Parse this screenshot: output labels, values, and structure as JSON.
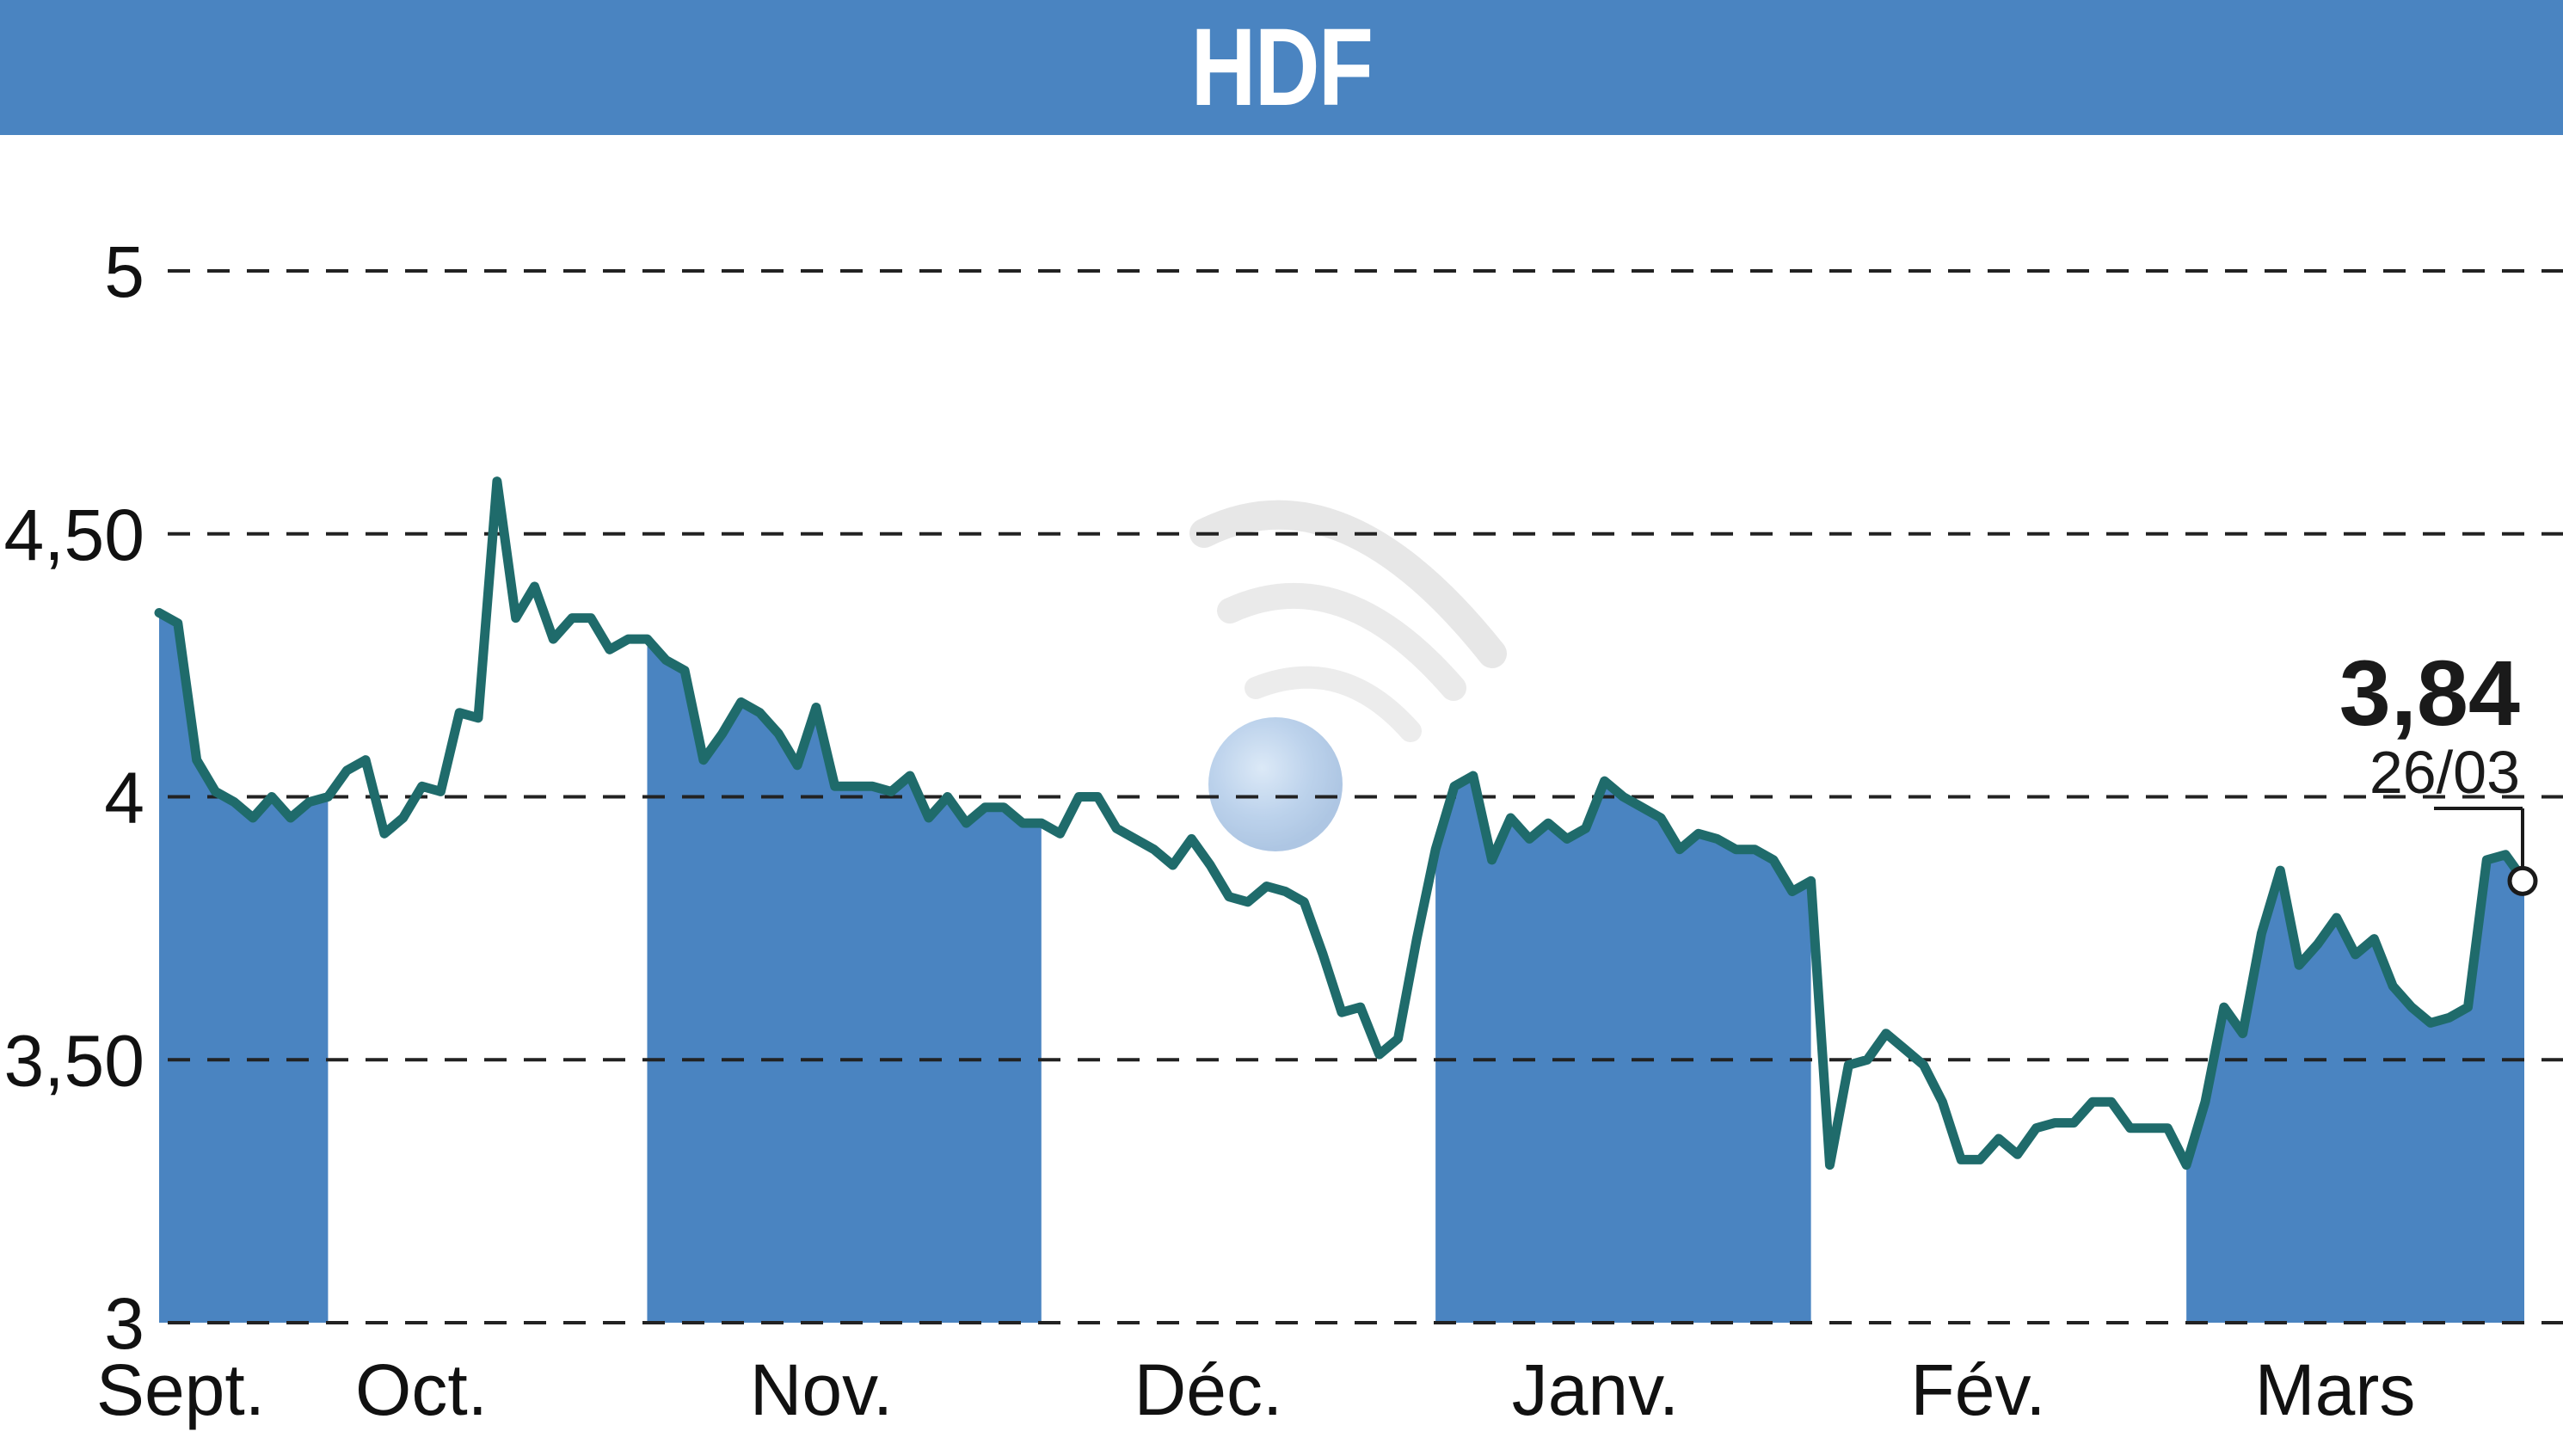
{
  "header": {
    "title": "HDF"
  },
  "colors": {
    "banner": "#4a84c1",
    "fill": "#4a84c1",
    "line": "#1f6b6b",
    "grid": "#222222"
  },
  "watermark": {
    "icon": "wifi-signal-icon"
  },
  "chart_data": {
    "type": "line",
    "title": "HDF",
    "ylim": [
      3,
      5
    ],
    "y_ticks": [
      {
        "value": 3,
        "label": "3"
      },
      {
        "value": 3.5,
        "label": "3,50"
      },
      {
        "value": 4,
        "label": "4"
      },
      {
        "value": 4.5,
        "label": "4,50"
      },
      {
        "value": 5,
        "label": "5"
      }
    ],
    "months": [
      "Sept.",
      "Oct.",
      "Nov.",
      "Déc.",
      "Janv.",
      "Fév.",
      "Mars"
    ],
    "shaded_months": [
      "Sept.",
      "Nov.",
      "Janv.",
      "Mars"
    ],
    "grid": "horizontal-dashed",
    "last_value": {
      "label": "3,84",
      "date": "26/03",
      "value": 3.84
    },
    "series": [
      {
        "values": [
          4.35,
          4.33,
          4.07,
          4.01,
          3.99,
          3.96,
          4.0,
          3.96,
          3.99,
          4.0,
          4.05,
          4.07,
          3.93,
          3.96,
          4.02,
          4.01,
          4.16,
          4.15,
          4.6,
          4.34,
          4.4,
          4.3,
          4.34,
          4.34,
          4.28,
          4.3,
          4.3,
          4.26,
          4.24,
          4.07,
          4.12,
          4.18,
          4.16,
          4.12,
          4.06,
          4.17,
          4.02,
          4.02,
          4.02,
          4.01,
          4.04,
          3.96,
          4.0,
          3.95,
          3.98,
          3.98,
          3.95,
          3.95,
          3.93,
          4.0,
          4.0,
          3.94,
          3.92,
          3.9,
          3.87,
          3.92,
          3.87,
          3.81,
          3.8,
          3.83,
          3.82,
          3.8,
          3.7,
          3.59,
          3.6,
          3.51,
          3.54,
          3.73,
          3.9,
          4.02,
          4.04,
          3.88,
          3.96,
          3.92,
          3.95,
          3.92,
          3.94,
          4.03,
          4.0,
          3.98,
          3.96,
          3.9,
          3.93,
          3.92,
          3.9,
          3.9,
          3.88,
          3.82,
          3.84,
          3.3,
          3.49,
          3.5,
          3.55,
          3.52,
          3.49,
          3.42,
          3.31,
          3.31,
          3.35,
          3.32,
          3.37,
          3.38,
          3.38,
          3.42,
          3.42,
          3.37,
          3.37,
          3.37,
          3.3,
          3.42,
          3.6,
          3.55,
          3.74,
          3.86,
          3.68,
          3.72,
          3.77,
          3.7,
          3.73,
          3.64,
          3.6,
          3.57,
          3.58,
          3.6,
          3.88,
          3.89,
          3.84
        ]
      }
    ]
  }
}
